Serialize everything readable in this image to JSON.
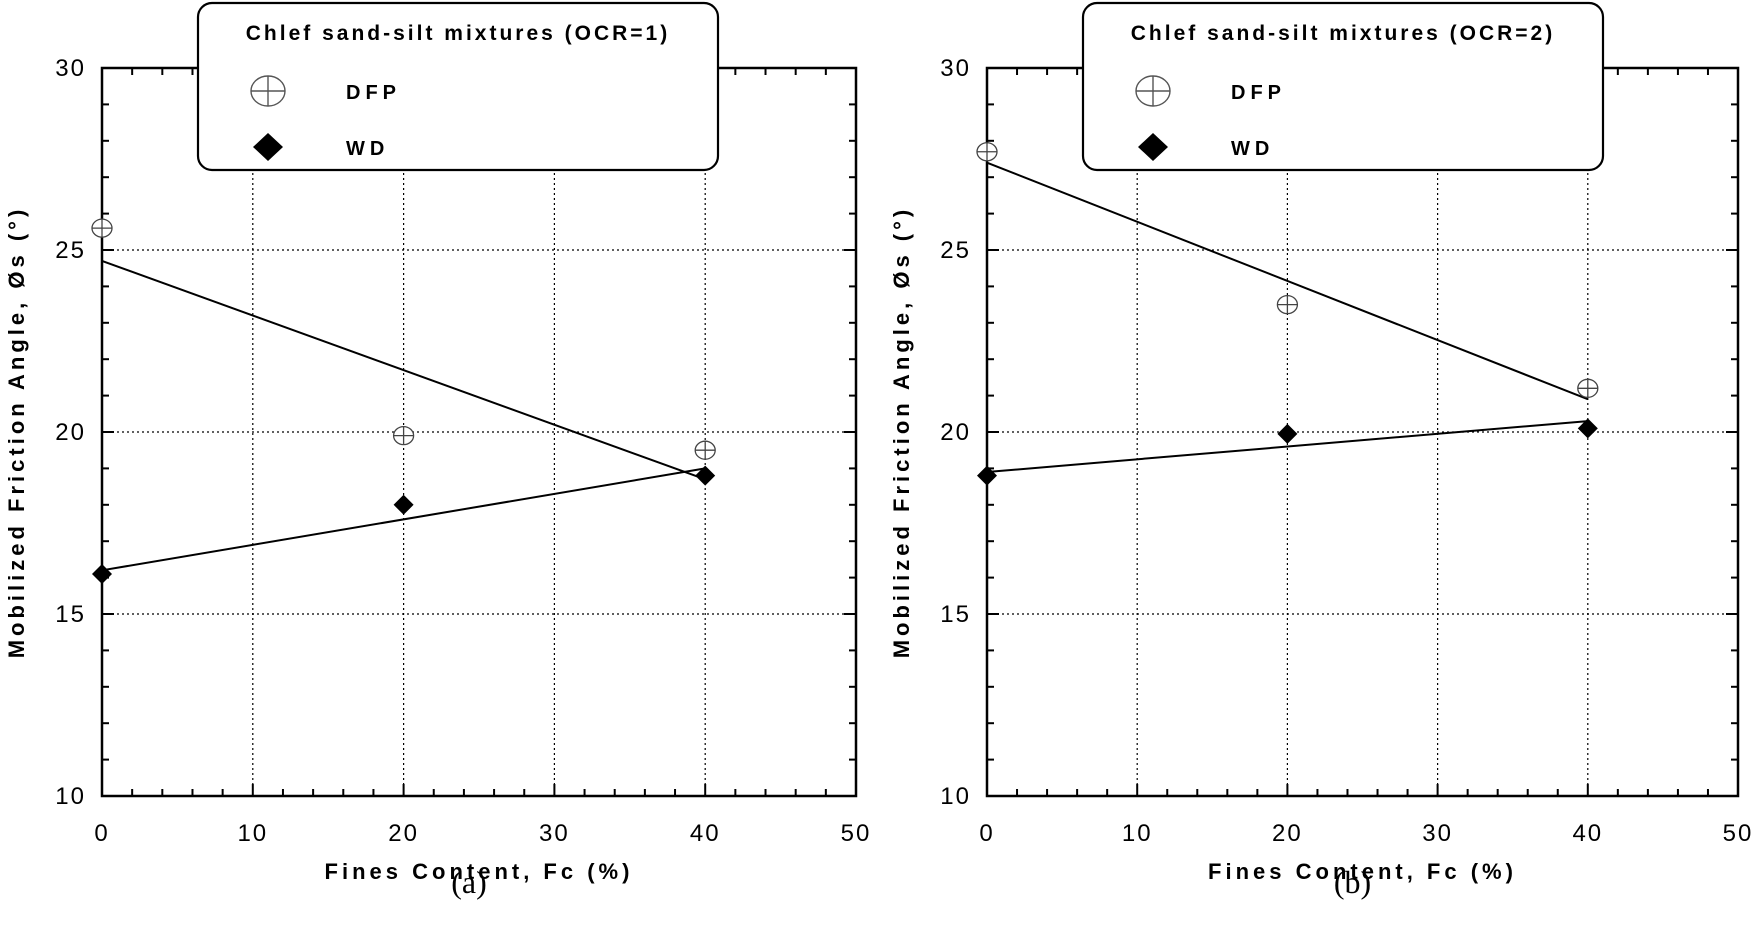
{
  "chart_data": [
    {
      "type": "scatter",
      "panel_label": "(a)",
      "legend_title": "Chlef sand-silt mixtures (OCR=1)",
      "xlabel": "Fines Content, Fc (%)",
      "ylabel": "Mobilized Friction Angle, Øs (°)",
      "xlim": [
        0,
        50
      ],
      "ylim": [
        10,
        30
      ],
      "xticks": [
        "0",
        "10",
        "20",
        "30",
        "40",
        "50"
      ],
      "yticks": [
        "10",
        "15",
        "20",
        "25",
        "30"
      ],
      "grid": true,
      "series": [
        {
          "name": "DFP",
          "marker": "circle-plus",
          "x": [
            0,
            20,
            40
          ],
          "y": [
            25.6,
            19.9,
            19.5
          ],
          "trendline": {
            "x": [
              0,
              40
            ],
            "y": [
              24.7,
              18.7
            ]
          }
        },
        {
          "name": "WD",
          "marker": "diamond",
          "x": [
            0,
            20,
            40
          ],
          "y": [
            16.1,
            18.0,
            18.8
          ],
          "trendline": {
            "x": [
              0,
              40
            ],
            "y": [
              16.2,
              19.0
            ]
          }
        }
      ]
    },
    {
      "type": "scatter",
      "panel_label": "(b)",
      "legend_title": "Chlef sand-silt mixtures (OCR=2)",
      "xlabel": "Fines Content, Fc (%)",
      "ylabel": "Mobilized Friction Angle, Øs (°)",
      "xlim": [
        0,
        50
      ],
      "ylim": [
        10,
        30
      ],
      "xticks": [
        "0",
        "10",
        "20",
        "30",
        "40",
        "50"
      ],
      "yticks": [
        "10",
        "15",
        "20",
        "25",
        "30"
      ],
      "grid": true,
      "series": [
        {
          "name": "DFP",
          "marker": "circle-plus",
          "x": [
            0,
            20,
            40
          ],
          "y": [
            27.7,
            23.5,
            21.2
          ],
          "trendline": {
            "x": [
              0,
              40
            ],
            "y": [
              27.4,
              20.9
            ]
          }
        },
        {
          "name": "WD",
          "marker": "diamond",
          "x": [
            0,
            20,
            40
          ],
          "y": [
            18.8,
            19.95,
            20.1
          ],
          "trendline": {
            "x": [
              0,
              40
            ],
            "y": [
              18.9,
              20.3
            ]
          }
        }
      ]
    }
  ]
}
